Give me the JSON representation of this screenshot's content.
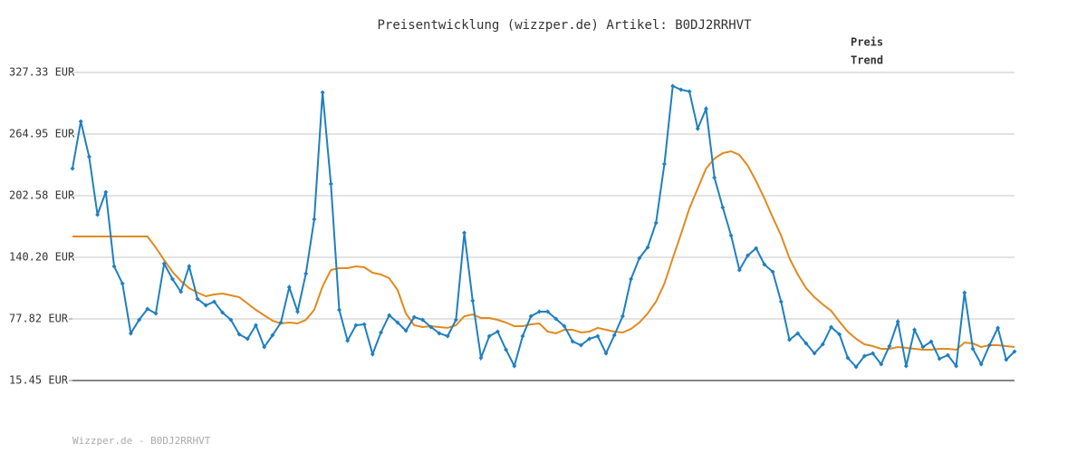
{
  "chart_data": {
    "type": "line",
    "title": "Preisentwicklung (wizzper.de) Artikel: B0DJ2RRHVT",
    "footer": "Wizzper.de - B0DJ2RRHVT",
    "ylim": [
      15.45,
      327.33
    ],
    "yticks": [
      {
        "value": 15.45,
        "label": "15.45 EUR"
      },
      {
        "value": 77.82,
        "label": "77.82 EUR"
      },
      {
        "value": 140.2,
        "label": "140.20 EUR"
      },
      {
        "value": 202.58,
        "label": "202.58 EUR"
      },
      {
        "value": 264.95,
        "label": "264.95 EUR"
      },
      {
        "value": 327.33,
        "label": "327.33 EUR"
      }
    ],
    "grid": true,
    "legend": "top-right",
    "series": [
      {
        "name": "Preis",
        "color": "#1f7fc0",
        "markers": true,
        "values": [
          230.1,
          277.8,
          242.0,
          183.3,
          206.3,
          131.0,
          113.6,
          63.2,
          76.9,
          87.9,
          83.3,
          133.8,
          118.2,
          105.3,
          131.0,
          98.0,
          91.6,
          95.3,
          84.2,
          76.9,
          62.2,
          57.6,
          71.4,
          49.4,
          61.3,
          74.2,
          109.9,
          85.2,
          123.7,
          178.7,
          307.2,
          214.5,
          87.0,
          55.8,
          71.4,
          72.3,
          42.1,
          64.1,
          81.5,
          74.2,
          65.9,
          79.7,
          76.9,
          69.6,
          63.2,
          60.4,
          76.9,
          165.0,
          96.2,
          38.4,
          60.4,
          65.0,
          46.6,
          30.1,
          60.4,
          80.6,
          85.2,
          85.2,
          77.8,
          70.5,
          54.9,
          51.2,
          57.6,
          60.4,
          43.0,
          61.3,
          80.6,
          118.2,
          139.3,
          150.3,
          175.1,
          234.7,
          313.6,
          309.9,
          308.1,
          270.5,
          290.6,
          220.9,
          190.7,
          162.2,
          127.4,
          142.0,
          149.4,
          132.9,
          125.5,
          95.3,
          56.7,
          63.2,
          53.1,
          43.0,
          52.1,
          69.6,
          62.2,
          38.4,
          29.2,
          40.2,
          43.0,
          32.0,
          50.3,
          75.1,
          30.1,
          66.8,
          49.4,
          54.9,
          37.5,
          41.1,
          30.1,
          104.4,
          47.6,
          32.0,
          51.2,
          68.7,
          36.5,
          44.8
        ]
      },
      {
        "name": "Trend",
        "color": "#e08a1e",
        "markers": false,
        "values": [
          161.3,
          161.3,
          161.3,
          161.3,
          161.3,
          161.3,
          161.3,
          161.3,
          161.3,
          161.3,
          150.0,
          137.4,
          125.5,
          116.3,
          109.0,
          104.4,
          100.8,
          102.6,
          103.5,
          101.7,
          99.8,
          93.4,
          87.0,
          81.5,
          76.0,
          73.2,
          74.2,
          73.2,
          76.9,
          87.0,
          110.8,
          127.4,
          129.2,
          129.2,
          131.0,
          130.1,
          124.6,
          122.8,
          119.1,
          107.2,
          83.3,
          71.4,
          69.6,
          70.5,
          69.6,
          68.7,
          71.4,
          80.6,
          82.4,
          78.7,
          78.7,
          76.9,
          74.2,
          70.5,
          70.5,
          72.3,
          73.2,
          65.0,
          63.2,
          66.8,
          66.8,
          64.1,
          65.0,
          68.7,
          66.8,
          65.0,
          64.1,
          67.7,
          74.2,
          83.3,
          95.3,
          113.6,
          139.3,
          164.0,
          189.7,
          209.9,
          230.1,
          240.2,
          245.7,
          247.5,
          243.9,
          232.9,
          217.3,
          199.8,
          180.6,
          162.2,
          139.3,
          122.8,
          109.0,
          99.8,
          92.5,
          86.1,
          75.1,
          65.0,
          57.6,
          52.1,
          50.3,
          47.6,
          47.6,
          49.4,
          48.5,
          47.6,
          46.6,
          46.6,
          47.6,
          47.6,
          46.6,
          53.9,
          53.1,
          49.4,
          51.2,
          51.2,
          50.3,
          49.4
        ]
      }
    ]
  }
}
